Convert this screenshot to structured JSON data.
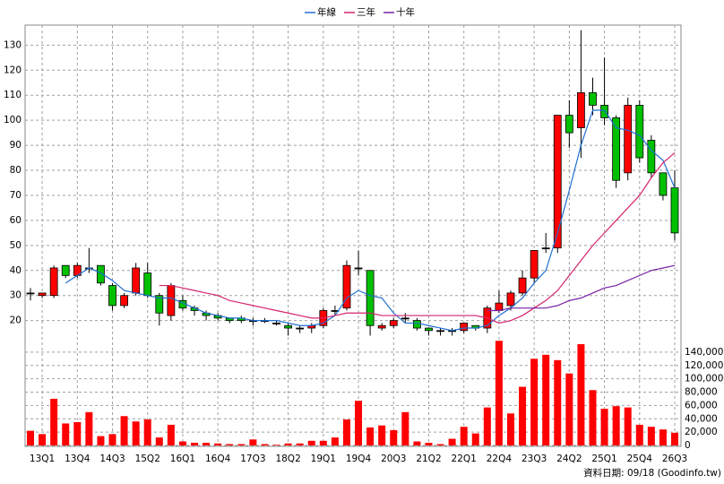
{
  "chart_data": [
    {
      "type": "candlestick",
      "categories": [
        null,
        "13Q1",
        null,
        null,
        "13Q4",
        null,
        null,
        "14Q3",
        null,
        null,
        "15Q2",
        null,
        null,
        "16Q1",
        null,
        null,
        "16Q4",
        null,
        null,
        "17Q3",
        null,
        null,
        "18Q2",
        null,
        null,
        "19Q1",
        null,
        null,
        "19Q4",
        null,
        null,
        "20Q3",
        null,
        null,
        "21Q2",
        null,
        null,
        "22Q1",
        null,
        null,
        "22Q4",
        null,
        null,
        "23Q3",
        null,
        null,
        "24Q2",
        null,
        null,
        "25Q1",
        null,
        null,
        "25Q4",
        null,
        null,
        "26Q3"
      ],
      "open": [
        31,
        30,
        30,
        42,
        38,
        41,
        42,
        34,
        26,
        31,
        39,
        30,
        22,
        28,
        25,
        23,
        22,
        21,
        21,
        20,
        20,
        19,
        18,
        17,
        17,
        18,
        24,
        25,
        41,
        40,
        17,
        18,
        21,
        20,
        17,
        16,
        16,
        16,
        18,
        17,
        24,
        26,
        31,
        37,
        49,
        49,
        102,
        97,
        111,
        106,
        101,
        79,
        106,
        92,
        79,
        73
      ],
      "high": [
        33,
        31,
        42,
        42,
        43,
        49,
        42,
        35,
        31,
        43,
        43,
        31,
        35,
        30,
        26,
        24,
        23,
        21,
        22,
        21,
        21,
        20,
        19,
        18,
        19,
        25,
        26,
        44,
        48,
        40,
        19,
        21,
        23,
        21,
        17,
        17,
        17,
        19,
        18,
        26,
        32,
        32,
        40,
        48,
        55,
        102,
        108,
        136,
        117,
        125,
        102,
        109,
        108,
        94,
        79,
        80
      ],
      "low": [
        28,
        29,
        29,
        37,
        37,
        39,
        34,
        24,
        25,
        30,
        29,
        18,
        20,
        24,
        22,
        20,
        20,
        19,
        19,
        18,
        19,
        18,
        14,
        15,
        15,
        17,
        22,
        24,
        38,
        14,
        16,
        17,
        19,
        16,
        14,
        14,
        14,
        15,
        16,
        15,
        23,
        24,
        30,
        35,
        47,
        47,
        89,
        85,
        102,
        98,
        73,
        76,
        83,
        77,
        68,
        52
      ],
      "close": [
        31,
        31,
        41,
        38,
        42,
        41,
        35,
        26,
        30,
        41,
        30,
        23,
        34,
        25,
        24,
        22,
        21,
        20,
        20,
        20,
        20,
        19,
        17,
        17,
        18,
        24,
        24,
        42,
        41,
        18,
        18,
        20,
        21,
        17,
        16,
        16,
        16,
        19,
        17,
        25,
        27,
        31,
        37,
        48,
        49,
        102,
        95,
        111,
        106,
        101,
        76,
        106,
        85,
        79,
        70,
        55
      ],
      "up_color": "#ff0000",
      "down_color": "#00c000",
      "lines": [
        {
          "name": "年線",
          "color": "#1f6fd0",
          "values": [
            null,
            null,
            null,
            35,
            38,
            41,
            39,
            36,
            32,
            31,
            30,
            29,
            29,
            27,
            25,
            23,
            22,
            21,
            21,
            20,
            20,
            20,
            19,
            18,
            18,
            19,
            22,
            29,
            32,
            30,
            29,
            23,
            19,
            19,
            18,
            17,
            16,
            17,
            17,
            18,
            22,
            25,
            29,
            35,
            40,
            55,
            72,
            90,
            104,
            104,
            97,
            96,
            94,
            88,
            84,
            73
          ]
        },
        {
          "name": "三年",
          "color": "#d6246e",
          "values": [
            null,
            null,
            null,
            null,
            null,
            null,
            null,
            null,
            null,
            null,
            null,
            34,
            34,
            33,
            32,
            31,
            30,
            28,
            27,
            26,
            25,
            24,
            23,
            22,
            21,
            21,
            22,
            23,
            23,
            23,
            22,
            22,
            22,
            22,
            22,
            22,
            22,
            22,
            22,
            21,
            19,
            20,
            22,
            25,
            28,
            32,
            38,
            44,
            50,
            55,
            60,
            65,
            70,
            77,
            83,
            87
          ]
        },
        {
          "name": "十年",
          "color": "#7a1fa8",
          "values": [
            null,
            null,
            null,
            null,
            null,
            null,
            null,
            null,
            null,
            null,
            null,
            null,
            null,
            null,
            null,
            null,
            null,
            null,
            null,
            null,
            null,
            null,
            null,
            null,
            null,
            null,
            null,
            null,
            null,
            null,
            null,
            null,
            null,
            null,
            null,
            null,
            null,
            null,
            null,
            24,
            24,
            25,
            25,
            25,
            25,
            26,
            28,
            29,
            31,
            33,
            34,
            36,
            38,
            40,
            41,
            42
          ]
        }
      ],
      "ylim": [
        12,
        138
      ],
      "yticks": [
        20,
        30,
        40,
        50,
        60,
        70,
        80,
        90,
        100,
        110,
        120,
        130
      ],
      "grid": true
    },
    {
      "type": "bar",
      "values": [
        22000,
        17000,
        70000,
        33000,
        35000,
        50000,
        14000,
        17000,
        44000,
        36000,
        39000,
        12000,
        31000,
        6000,
        4000,
        4000,
        3000,
        2000,
        2000,
        9000,
        2000,
        1000,
        3000,
        3000,
        7000,
        7000,
        12000,
        39000,
        67000,
        27000,
        30000,
        23000,
        50000,
        6000,
        4000,
        2000,
        10000,
        28000,
        18000,
        57000,
        157000,
        48000,
        88000,
        130000,
        136000,
        128000,
        108000,
        152000,
        83000,
        55000,
        59000,
        57000,
        31000,
        28000,
        24000,
        19000
      ],
      "color": "#ff0000",
      "ylim": [
        0,
        160000
      ],
      "yticks": [
        0,
        {
          "value": 20000,
          "label": "20,000"
        },
        {
          "value": 40000,
          "label": "40,000"
        },
        {
          "value": 60000,
          "label": "60,000"
        },
        {
          "value": 80000,
          "label": "80,000"
        },
        {
          "value": 100000,
          "label": "100,000"
        },
        {
          "value": 120000,
          "label": "120,000"
        },
        {
          "value": 140000,
          "label": "140,000"
        }
      ],
      "grid": true
    }
  ],
  "source": "資料日期: 09/18 (Goodinfo.tw)"
}
